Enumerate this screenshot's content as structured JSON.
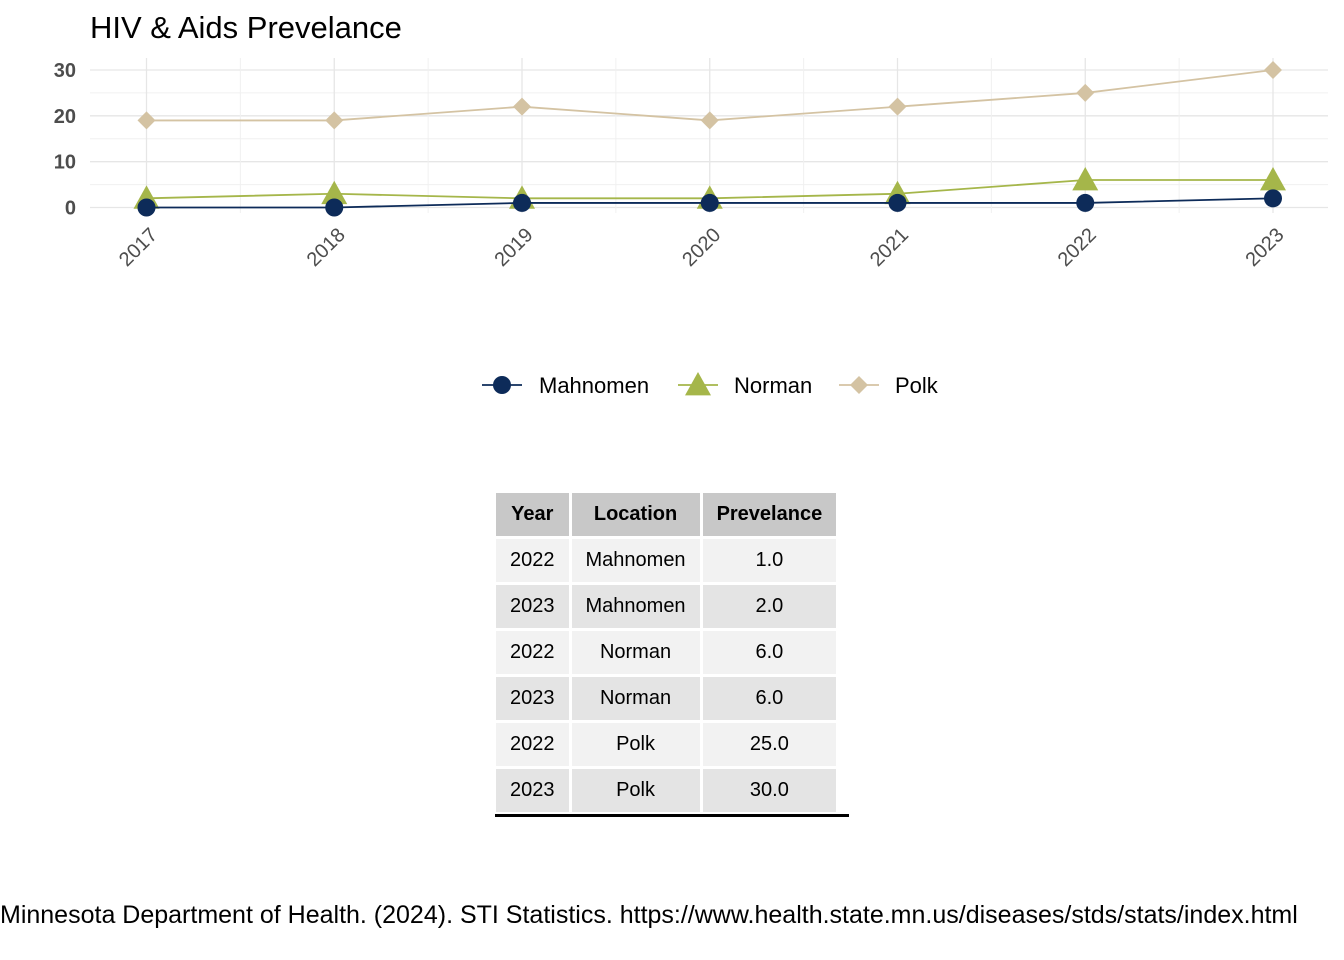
{
  "chart_data": {
    "type": "line",
    "title": "HIV & Aids Prevelance",
    "x": [
      "2017",
      "2018",
      "2019",
      "2020",
      "2021",
      "2022",
      "2023"
    ],
    "yticks": [
      "0",
      "10",
      "20",
      "30"
    ],
    "ylim": [
      0,
      30
    ],
    "grid": true,
    "legend_position": "bottom",
    "series": [
      {
        "name": "Mahnomen",
        "marker": "circle",
        "color": "#0d2b59",
        "values": [
          0,
          0,
          1,
          1,
          1,
          1,
          2
        ]
      },
      {
        "name": "Norman",
        "marker": "triangle",
        "color": "#a5b64a",
        "values": [
          2,
          3,
          2,
          2,
          3,
          6,
          6
        ]
      },
      {
        "name": "Polk",
        "marker": "diamond",
        "color": "#d4c3a3",
        "values": [
          19,
          19,
          22,
          19,
          22,
          25,
          30
        ]
      }
    ]
  },
  "table": {
    "headers": [
      "Year",
      "Location",
      "Prevelance"
    ],
    "rows": [
      [
        "2022",
        "Mahnomen",
        "1.0"
      ],
      [
        "2023",
        "Mahnomen",
        "2.0"
      ],
      [
        "2022",
        "Norman",
        "6.0"
      ],
      [
        "2023",
        "Norman",
        "6.0"
      ],
      [
        "2022",
        "Polk",
        "25.0"
      ],
      [
        "2023",
        "Polk",
        "30.0"
      ]
    ]
  },
  "caption": "Minnesota Department of Health. (2024). STI Statistics. https://www.health.state.mn.us/diseases/stds/stats/index.html"
}
